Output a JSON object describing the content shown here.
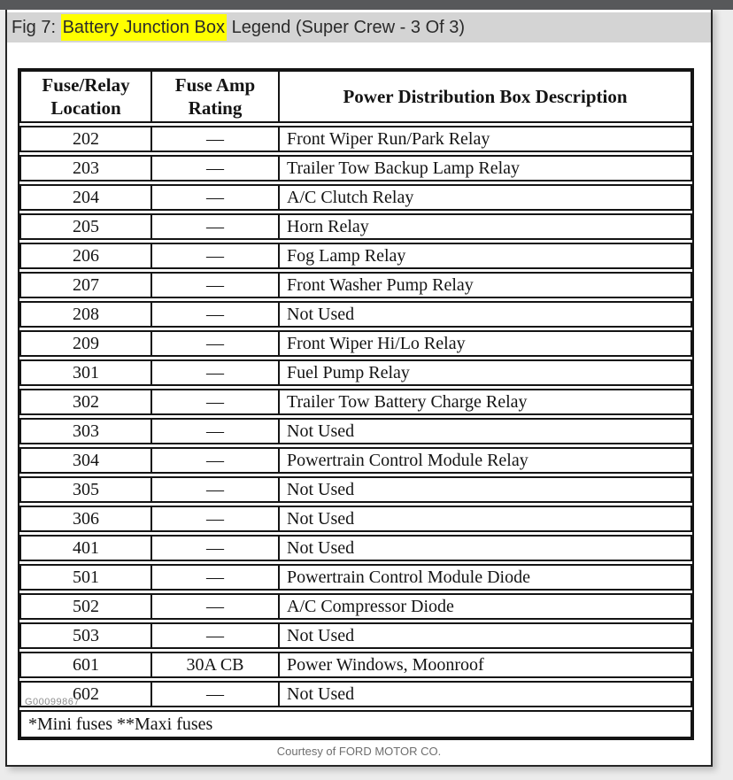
{
  "window": {
    "topbar_color": "#57585a",
    "page_background": "#ffffff",
    "outside_background": "#ececec"
  },
  "figure_caption": {
    "prefix": "Fig 7: ",
    "highlight": "Battery Junction Box",
    "suffix": " Legend (Super Crew - 3 Of 3)",
    "highlight_color": "#ffff00",
    "bar_color": "#d4d4d4"
  },
  "table": {
    "headers": {
      "location": "Fuse/Relay Location",
      "rating": "Fuse Amp Rating",
      "description": "Power Distribution Box Description"
    },
    "rows": [
      {
        "location": "202",
        "rating": "—",
        "description": "Front Wiper Run/Park Relay"
      },
      {
        "location": "203",
        "rating": "—",
        "description": "Trailer Tow Backup Lamp Relay"
      },
      {
        "location": "204",
        "rating": "—",
        "description": "A/C Clutch Relay"
      },
      {
        "location": "205",
        "rating": "—",
        "description": "Horn Relay"
      },
      {
        "location": "206",
        "rating": "—",
        "description": "Fog Lamp Relay"
      },
      {
        "location": "207",
        "rating": "—",
        "description": "Front Washer Pump Relay"
      },
      {
        "location": "208",
        "rating": "—",
        "description": "Not Used"
      },
      {
        "location": "209",
        "rating": "—",
        "description": "Front Wiper Hi/Lo Relay"
      },
      {
        "location": "301",
        "rating": "—",
        "description": "Fuel Pump Relay"
      },
      {
        "location": "302",
        "rating": "—",
        "description": "Trailer Tow Battery Charge Relay"
      },
      {
        "location": "303",
        "rating": "—",
        "description": "Not Used"
      },
      {
        "location": "304",
        "rating": "—",
        "description": "Powertrain Control Module Relay"
      },
      {
        "location": "305",
        "rating": "—",
        "description": "Not Used"
      },
      {
        "location": "306",
        "rating": "—",
        "description": "Not Used"
      },
      {
        "location": "401",
        "rating": "—",
        "description": "Not Used"
      },
      {
        "location": "501",
        "rating": "—",
        "description": "Powertrain Control Module Diode"
      },
      {
        "location": "502",
        "rating": "—",
        "description": "A/C Compressor Diode"
      },
      {
        "location": "503",
        "rating": "—",
        "description": "Not Used"
      },
      {
        "location": "601",
        "rating": "30A CB",
        "description": "Power Windows, Moonroof"
      },
      {
        "location": "602",
        "rating": "—",
        "description": "Not Used"
      }
    ],
    "footnote": "*Mini fuses **Maxi fuses"
  },
  "footer": {
    "figure_code": "G00099867",
    "courtesy": "Courtesy of FORD MOTOR CO."
  }
}
